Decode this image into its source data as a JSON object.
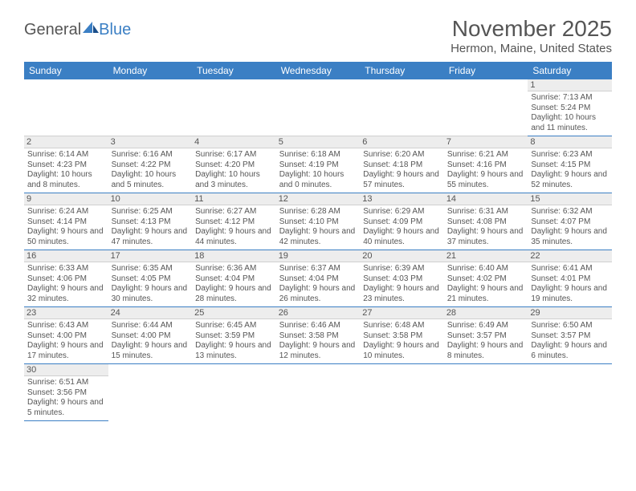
{
  "brand": {
    "part1": "General",
    "part2": "Blue"
  },
  "title": "November 2025",
  "location": "Hermon, Maine, United States",
  "styling": {
    "header_bg": "#3b7fc4",
    "header_fg": "#ffffff",
    "row_divider": "#3b7fc4",
    "daynum_bg": "#ededed",
    "text_color": "#555555",
    "page_bg": "#ffffff",
    "month_title_fontsize": 28,
    "location_fontsize": 15,
    "dayheader_fontsize": 12,
    "daynum_fontsize": 11,
    "cell_fontsize": 10
  },
  "day_headers": [
    "Sunday",
    "Monday",
    "Tuesday",
    "Wednesday",
    "Thursday",
    "Friday",
    "Saturday"
  ],
  "weeks": [
    [
      {
        "n": "",
        "sr": "",
        "ss": "",
        "dl": ""
      },
      {
        "n": "",
        "sr": "",
        "ss": "",
        "dl": ""
      },
      {
        "n": "",
        "sr": "",
        "ss": "",
        "dl": ""
      },
      {
        "n": "",
        "sr": "",
        "ss": "",
        "dl": ""
      },
      {
        "n": "",
        "sr": "",
        "ss": "",
        "dl": ""
      },
      {
        "n": "",
        "sr": "",
        "ss": "",
        "dl": ""
      },
      {
        "n": "1",
        "sr": "Sunrise: 7:13 AM",
        "ss": "Sunset: 5:24 PM",
        "dl": "Daylight: 10 hours and 11 minutes."
      }
    ],
    [
      {
        "n": "2",
        "sr": "Sunrise: 6:14 AM",
        "ss": "Sunset: 4:23 PM",
        "dl": "Daylight: 10 hours and 8 minutes."
      },
      {
        "n": "3",
        "sr": "Sunrise: 6:16 AM",
        "ss": "Sunset: 4:22 PM",
        "dl": "Daylight: 10 hours and 5 minutes."
      },
      {
        "n": "4",
        "sr": "Sunrise: 6:17 AM",
        "ss": "Sunset: 4:20 PM",
        "dl": "Daylight: 10 hours and 3 minutes."
      },
      {
        "n": "5",
        "sr": "Sunrise: 6:18 AM",
        "ss": "Sunset: 4:19 PM",
        "dl": "Daylight: 10 hours and 0 minutes."
      },
      {
        "n": "6",
        "sr": "Sunrise: 6:20 AM",
        "ss": "Sunset: 4:18 PM",
        "dl": "Daylight: 9 hours and 57 minutes."
      },
      {
        "n": "7",
        "sr": "Sunrise: 6:21 AM",
        "ss": "Sunset: 4:16 PM",
        "dl": "Daylight: 9 hours and 55 minutes."
      },
      {
        "n": "8",
        "sr": "Sunrise: 6:23 AM",
        "ss": "Sunset: 4:15 PM",
        "dl": "Daylight: 9 hours and 52 minutes."
      }
    ],
    [
      {
        "n": "9",
        "sr": "Sunrise: 6:24 AM",
        "ss": "Sunset: 4:14 PM",
        "dl": "Daylight: 9 hours and 50 minutes."
      },
      {
        "n": "10",
        "sr": "Sunrise: 6:25 AM",
        "ss": "Sunset: 4:13 PM",
        "dl": "Daylight: 9 hours and 47 minutes."
      },
      {
        "n": "11",
        "sr": "Sunrise: 6:27 AM",
        "ss": "Sunset: 4:12 PM",
        "dl": "Daylight: 9 hours and 44 minutes."
      },
      {
        "n": "12",
        "sr": "Sunrise: 6:28 AM",
        "ss": "Sunset: 4:10 PM",
        "dl": "Daylight: 9 hours and 42 minutes."
      },
      {
        "n": "13",
        "sr": "Sunrise: 6:29 AM",
        "ss": "Sunset: 4:09 PM",
        "dl": "Daylight: 9 hours and 40 minutes."
      },
      {
        "n": "14",
        "sr": "Sunrise: 6:31 AM",
        "ss": "Sunset: 4:08 PM",
        "dl": "Daylight: 9 hours and 37 minutes."
      },
      {
        "n": "15",
        "sr": "Sunrise: 6:32 AM",
        "ss": "Sunset: 4:07 PM",
        "dl": "Daylight: 9 hours and 35 minutes."
      }
    ],
    [
      {
        "n": "16",
        "sr": "Sunrise: 6:33 AM",
        "ss": "Sunset: 4:06 PM",
        "dl": "Daylight: 9 hours and 32 minutes."
      },
      {
        "n": "17",
        "sr": "Sunrise: 6:35 AM",
        "ss": "Sunset: 4:05 PM",
        "dl": "Daylight: 9 hours and 30 minutes."
      },
      {
        "n": "18",
        "sr": "Sunrise: 6:36 AM",
        "ss": "Sunset: 4:04 PM",
        "dl": "Daylight: 9 hours and 28 minutes."
      },
      {
        "n": "19",
        "sr": "Sunrise: 6:37 AM",
        "ss": "Sunset: 4:04 PM",
        "dl": "Daylight: 9 hours and 26 minutes."
      },
      {
        "n": "20",
        "sr": "Sunrise: 6:39 AM",
        "ss": "Sunset: 4:03 PM",
        "dl": "Daylight: 9 hours and 23 minutes."
      },
      {
        "n": "21",
        "sr": "Sunrise: 6:40 AM",
        "ss": "Sunset: 4:02 PM",
        "dl": "Daylight: 9 hours and 21 minutes."
      },
      {
        "n": "22",
        "sr": "Sunrise: 6:41 AM",
        "ss": "Sunset: 4:01 PM",
        "dl": "Daylight: 9 hours and 19 minutes."
      }
    ],
    [
      {
        "n": "23",
        "sr": "Sunrise: 6:43 AM",
        "ss": "Sunset: 4:00 PM",
        "dl": "Daylight: 9 hours and 17 minutes."
      },
      {
        "n": "24",
        "sr": "Sunrise: 6:44 AM",
        "ss": "Sunset: 4:00 PM",
        "dl": "Daylight: 9 hours and 15 minutes."
      },
      {
        "n": "25",
        "sr": "Sunrise: 6:45 AM",
        "ss": "Sunset: 3:59 PM",
        "dl": "Daylight: 9 hours and 13 minutes."
      },
      {
        "n": "26",
        "sr": "Sunrise: 6:46 AM",
        "ss": "Sunset: 3:58 PM",
        "dl": "Daylight: 9 hours and 12 minutes."
      },
      {
        "n": "27",
        "sr": "Sunrise: 6:48 AM",
        "ss": "Sunset: 3:58 PM",
        "dl": "Daylight: 9 hours and 10 minutes."
      },
      {
        "n": "28",
        "sr": "Sunrise: 6:49 AM",
        "ss": "Sunset: 3:57 PM",
        "dl": "Daylight: 9 hours and 8 minutes."
      },
      {
        "n": "29",
        "sr": "Sunrise: 6:50 AM",
        "ss": "Sunset: 3:57 PM",
        "dl": "Daylight: 9 hours and 6 minutes."
      }
    ],
    [
      {
        "n": "30",
        "sr": "Sunrise: 6:51 AM",
        "ss": "Sunset: 3:56 PM",
        "dl": "Daylight: 9 hours and 5 minutes."
      },
      {
        "n": "",
        "sr": "",
        "ss": "",
        "dl": ""
      },
      {
        "n": "",
        "sr": "",
        "ss": "",
        "dl": ""
      },
      {
        "n": "",
        "sr": "",
        "ss": "",
        "dl": ""
      },
      {
        "n": "",
        "sr": "",
        "ss": "",
        "dl": ""
      },
      {
        "n": "",
        "sr": "",
        "ss": "",
        "dl": ""
      },
      {
        "n": "",
        "sr": "",
        "ss": "",
        "dl": ""
      }
    ]
  ]
}
